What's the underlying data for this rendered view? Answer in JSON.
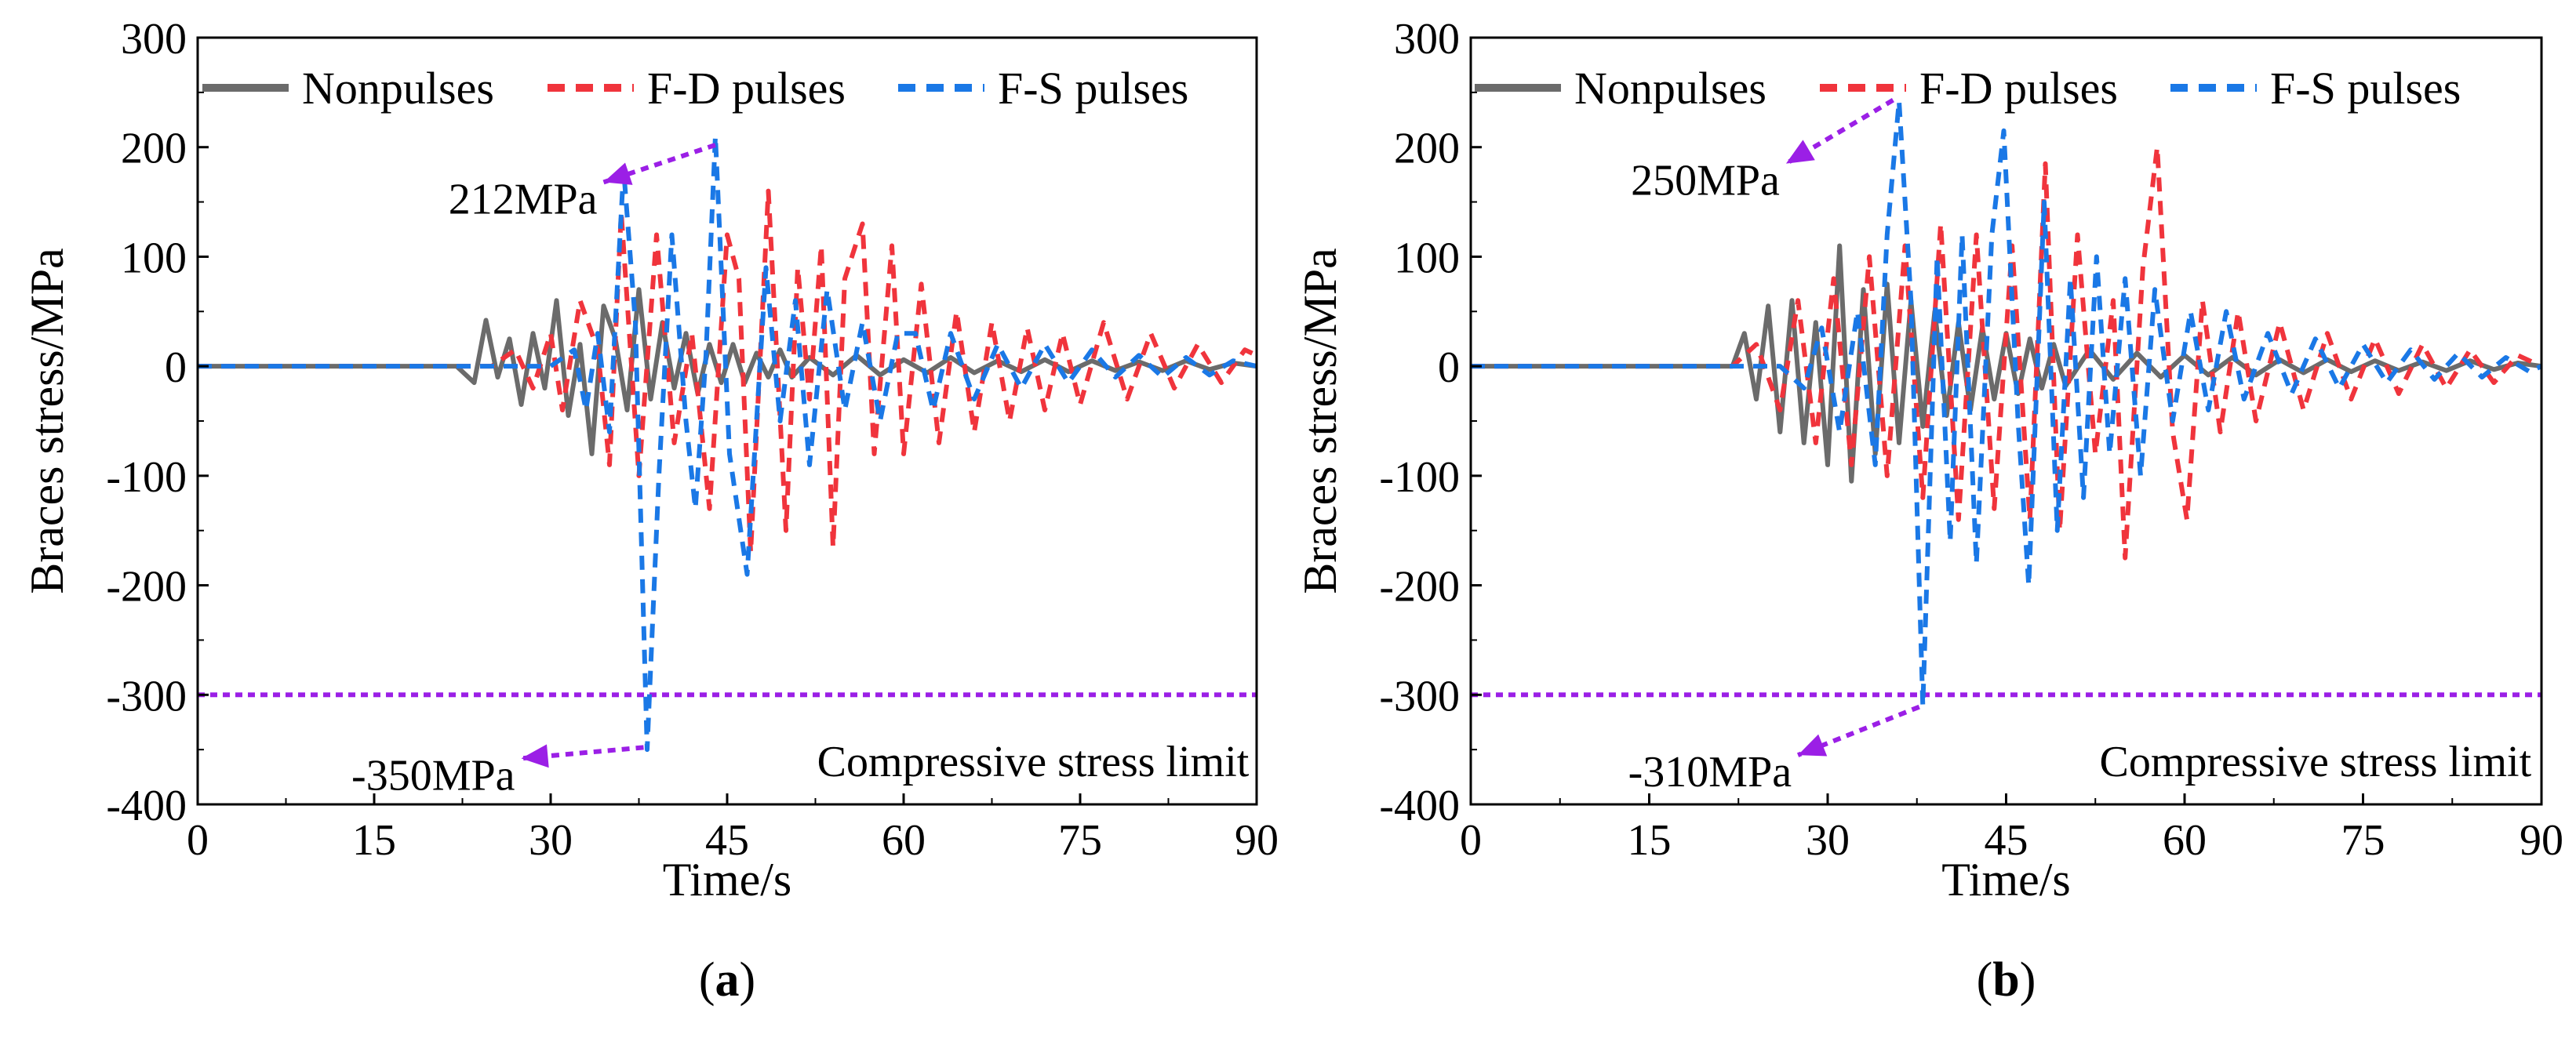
{
  "chart_data": [
    {
      "type": "line",
      "panel_label": "a",
      "xlabel": "Time/s",
      "ylabel": "Braces stress/MPa",
      "xlim": [
        0,
        90
      ],
      "ylim": [
        -400,
        300
      ],
      "xticks": [
        0,
        15,
        30,
        45,
        60,
        75,
        90
      ],
      "yticks": [
        -400,
        -300,
        -200,
        -100,
        0,
        100,
        200,
        300
      ],
      "legend": [
        "Nonpulses",
        "F-D pulses",
        "F-S pulses"
      ],
      "series": [
        {
          "name": "Nonpulses",
          "color": "#6b6b6b",
          "style": "solid",
          "x": [
            0,
            22,
            23.5,
            24.5,
            25.5,
            26.5,
            27.5,
            28.5,
            29.5,
            30.5,
            31.5,
            32.5,
            33.5,
            34.5,
            35.5,
            36.5,
            37.5,
            38.5,
            39.5,
            40.5,
            41.5,
            42.5,
            43.5,
            44.5,
            45.5,
            46.5,
            47.5,
            48.5,
            49.5,
            50.5,
            52,
            54,
            56,
            58,
            60,
            62,
            64,
            66,
            68,
            70,
            72,
            74,
            76,
            78,
            80,
            82,
            84,
            86,
            88,
            90
          ],
          "y": [
            0,
            0,
            -15,
            42,
            -10,
            25,
            -35,
            30,
            -20,
            60,
            -45,
            20,
            -80,
            55,
            25,
            -40,
            70,
            -30,
            40,
            -20,
            30,
            -25,
            20,
            -15,
            20,
            -15,
            12,
            -10,
            15,
            -10,
            8,
            -8,
            10,
            -8,
            6,
            -6,
            8,
            -6,
            5,
            -5,
            6,
            -5,
            5,
            -4,
            4,
            -4,
            5,
            -3,
            3,
            0
          ]
        },
        {
          "name": "F-D pulses",
          "color": "#f0343c",
          "style": "dashed",
          "x": [
            0,
            25,
            27,
            28.5,
            30,
            31,
            32.5,
            34,
            35,
            36,
            37.5,
            39,
            40.5,
            42,
            43.5,
            45,
            46,
            47,
            48.5,
            50,
            51,
            52,
            53,
            54,
            55,
            56.5,
            57.5,
            59,
            60,
            61.5,
            63,
            64.5,
            66,
            67.5,
            69,
            70.5,
            72,
            73.5,
            75,
            77,
            79,
            81,
            83,
            85,
            87,
            89,
            90
          ],
          "y": [
            0,
            0,
            15,
            -20,
            30,
            -40,
            60,
            15,
            -90,
            140,
            -100,
            120,
            -70,
            30,
            -130,
            120,
            80,
            -170,
            160,
            -150,
            90,
            -30,
            110,
            -165,
            80,
            130,
            -80,
            110,
            -80,
            75,
            -70,
            50,
            -60,
            40,
            -50,
            35,
            -40,
            30,
            -35,
            40,
            -30,
            30,
            -20,
            20,
            -15,
            15,
            10
          ]
        },
        {
          "name": "F-S pulses",
          "color": "#1a78e6",
          "style": "dashed",
          "x": [
            0,
            30,
            32,
            33,
            34,
            35,
            36.2,
            37.2,
            38.2,
            39.2,
            40.3,
            41.5,
            42.3,
            43.2,
            44,
            45.2,
            46.7,
            48.3,
            49.5,
            50.8,
            52,
            53.5,
            55,
            56.5,
            58,
            59.5,
            61,
            62.5,
            64,
            66,
            68,
            70,
            72,
            74,
            76,
            78,
            80,
            82,
            84,
            86,
            88,
            90
          ],
          "y": [
            0,
            0,
            15,
            -40,
            30,
            -60,
            180,
            40,
            -350,
            -100,
            120,
            -50,
            -130,
            10,
            210,
            -80,
            -190,
            90,
            -50,
            60,
            -90,
            70,
            -40,
            40,
            -50,
            30,
            30,
            -40,
            30,
            -30,
            20,
            -20,
            20,
            -15,
            15,
            -10,
            10,
            -10,
            8,
            -8,
            5,
            0
          ]
        }
      ],
      "annotations": [
        {
          "text": "212MPa",
          "target": [
            44,
            202
          ],
          "label_anchor": [
            34.5,
            168
          ]
        },
        {
          "text": "-350MPa",
          "target": [
            37.9,
            -348
          ],
          "label_anchor": [
            27.5,
            -358
          ]
        },
        {
          "text": "Compressive stress limit",
          "at": [
            71,
            -360
          ]
        }
      ],
      "reference_line": {
        "y": -300,
        "color": "#9b1fe6",
        "style": "dotted"
      }
    },
    {
      "type": "line",
      "panel_label": "b",
      "xlabel": "Time/s",
      "ylabel": "Braces stress/MPa",
      "xlim": [
        0,
        90
      ],
      "ylim": [
        -400,
        300
      ],
      "xticks": [
        0,
        15,
        30,
        45,
        60,
        75,
        90
      ],
      "yticks": [
        -400,
        -300,
        -200,
        -100,
        0,
        100,
        200,
        300
      ],
      "legend": [
        "Nonpulses",
        "F-D pulses",
        "F-S pulses"
      ],
      "series": [
        {
          "name": "Nonpulses",
          "color": "#6b6b6b",
          "style": "solid",
          "x": [
            0,
            22,
            23,
            24,
            25,
            26,
            27,
            28,
            29,
            30,
            31,
            32,
            33,
            34,
            35,
            36,
            37,
            38,
            39,
            40,
            41,
            42,
            43,
            44,
            45,
            46,
            47,
            48,
            49,
            50,
            52,
            54,
            56,
            58,
            60,
            62,
            64,
            66,
            68,
            70,
            72,
            74,
            76,
            78,
            80,
            82,
            84,
            86,
            88,
            90
          ],
          "y": [
            0,
            0,
            30,
            -30,
            55,
            -60,
            60,
            -70,
            40,
            -90,
            110,
            -105,
            70,
            -80,
            75,
            -70,
            60,
            -55,
            50,
            -45,
            40,
            -40,
            35,
            -30,
            30,
            -25,
            25,
            -20,
            20,
            -18,
            15,
            -12,
            12,
            -10,
            10,
            -8,
            8,
            -8,
            6,
            -6,
            6,
            -5,
            5,
            -4,
            4,
            -4,
            5,
            -3,
            3,
            0
          ]
        },
        {
          "name": "F-D pulses",
          "color": "#f0343c",
          "style": "dashed",
          "x": [
            0,
            22,
            24,
            26,
            27.5,
            29,
            30.5,
            32,
            33.5,
            35,
            36.5,
            38,
            39.5,
            41,
            42.5,
            44,
            45.5,
            47,
            48.3,
            49.5,
            51,
            52.5,
            54,
            55,
            56.5,
            57.7,
            59,
            60.2,
            61.5,
            63,
            64.5,
            66,
            68,
            70,
            72,
            74,
            76,
            78,
            80,
            82,
            84,
            86,
            88,
            90
          ],
          "y": [
            0,
            0,
            20,
            -40,
            60,
            -70,
            80,
            -90,
            100,
            -100,
            110,
            -120,
            130,
            -140,
            120,
            -130,
            110,
            -140,
            185,
            -150,
            120,
            -80,
            60,
            -175,
            90,
            200,
            -60,
            -140,
            60,
            -60,
            50,
            -50,
            40,
            -40,
            30,
            -30,
            25,
            -25,
            20,
            -20,
            15,
            -15,
            10,
            0
          ]
        },
        {
          "name": "F-S pulses",
          "color": "#1a78e6",
          "style": "dashed",
          "x": [
            0,
            26,
            28,
            29.5,
            31,
            32.5,
            34,
            35,
            36,
            37,
            38,
            39.2,
            40.3,
            41.3,
            42.5,
            43.8,
            44.8,
            46,
            46.9,
            48.2,
            49.3,
            50.4,
            51.5,
            52.6,
            53.7,
            55,
            56.3,
            57.5,
            59,
            60.5,
            62,
            63.5,
            65,
            67,
            69,
            71,
            73,
            75,
            77,
            79,
            81,
            83,
            85,
            87,
            89,
            90
          ],
          "y": [
            0,
            0,
            -20,
            35,
            -60,
            50,
            -90,
            120,
            242,
            60,
            -310,
            100,
            -160,
            120,
            -180,
            120,
            215,
            -50,
            -200,
            150,
            -150,
            80,
            -120,
            100,
            -80,
            80,
            -100,
            70,
            -50,
            50,
            -40,
            50,
            -30,
            30,
            -25,
            25,
            -20,
            20,
            -15,
            15,
            -12,
            12,
            -10,
            8,
            -5,
            0
          ]
        }
      ],
      "annotations": [
        {
          "text": "250MPa",
          "target": [
            35.5,
            243
          ],
          "label_anchor": [
            26.5,
            185
          ]
        },
        {
          "text": "-310MPa",
          "target": [
            37.7,
            -311
          ],
          "label_anchor": [
            27.5,
            -355
          ]
        },
        {
          "text": "Compressive stress limit",
          "at": [
            71,
            -360
          ]
        }
      ],
      "reference_line": {
        "y": -300,
        "color": "#9b1fe6",
        "style": "dotted"
      }
    }
  ]
}
